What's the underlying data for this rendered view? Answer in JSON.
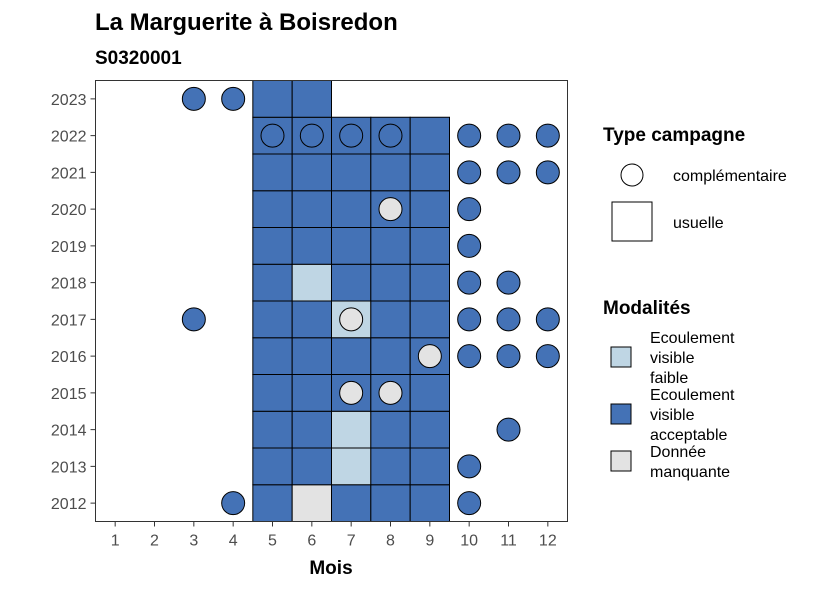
{
  "title": "La Marguerite à Boisredon",
  "subtitle": "S0320001",
  "chart_data": {
    "type": "heatmap",
    "title": "La Marguerite à Boisredon",
    "subtitle": "S0320001",
    "xlabel": "Mois",
    "ylabel": "",
    "x_ticks": [
      1,
      2,
      3,
      4,
      5,
      6,
      7,
      8,
      9,
      10,
      11,
      12
    ],
    "y_ticks": [
      2012,
      2013,
      2014,
      2015,
      2016,
      2017,
      2018,
      2019,
      2020,
      2021,
      2022,
      2023
    ],
    "xlim": [
      0.5,
      12.5
    ],
    "ylim": [
      2011.5,
      2023.5
    ],
    "colors": {
      "Ecoulement visible faible": "#bfd6e4",
      "Ecoulement visible acceptable": "#4472b6",
      "Donnée manquante": "#e3e3e3"
    },
    "usuelle": [
      {
        "year": 2012,
        "month": 5,
        "modalite": "acceptable"
      },
      {
        "year": 2012,
        "month": 6,
        "modalite": "manquante"
      },
      {
        "year": 2012,
        "month": 7,
        "modalite": "acceptable"
      },
      {
        "year": 2012,
        "month": 8,
        "modalite": "acceptable"
      },
      {
        "year": 2012,
        "month": 9,
        "modalite": "acceptable"
      },
      {
        "year": 2013,
        "month": 5,
        "modalite": "acceptable"
      },
      {
        "year": 2013,
        "month": 6,
        "modalite": "acceptable"
      },
      {
        "year": 2013,
        "month": 7,
        "modalite": "faible"
      },
      {
        "year": 2013,
        "month": 8,
        "modalite": "acceptable"
      },
      {
        "year": 2013,
        "month": 9,
        "modalite": "acceptable"
      },
      {
        "year": 2014,
        "month": 5,
        "modalite": "acceptable"
      },
      {
        "year": 2014,
        "month": 6,
        "modalite": "acceptable"
      },
      {
        "year": 2014,
        "month": 7,
        "modalite": "faible"
      },
      {
        "year": 2014,
        "month": 8,
        "modalite": "acceptable"
      },
      {
        "year": 2014,
        "month": 9,
        "modalite": "acceptable"
      },
      {
        "year": 2015,
        "month": 5,
        "modalite": "acceptable"
      },
      {
        "year": 2015,
        "month": 6,
        "modalite": "acceptable"
      },
      {
        "year": 2015,
        "month": 7,
        "modalite": "acceptable"
      },
      {
        "year": 2015,
        "month": 8,
        "modalite": "acceptable"
      },
      {
        "year": 2015,
        "month": 9,
        "modalite": "acceptable"
      },
      {
        "year": 2016,
        "month": 5,
        "modalite": "acceptable"
      },
      {
        "year": 2016,
        "month": 6,
        "modalite": "acceptable"
      },
      {
        "year": 2016,
        "month": 7,
        "modalite": "acceptable"
      },
      {
        "year": 2016,
        "month": 8,
        "modalite": "acceptable"
      },
      {
        "year": 2016,
        "month": 9,
        "modalite": "acceptable"
      },
      {
        "year": 2017,
        "month": 5,
        "modalite": "acceptable"
      },
      {
        "year": 2017,
        "month": 6,
        "modalite": "acceptable"
      },
      {
        "year": 2017,
        "month": 7,
        "modalite": "faible"
      },
      {
        "year": 2017,
        "month": 8,
        "modalite": "acceptable"
      },
      {
        "year": 2017,
        "month": 9,
        "modalite": "acceptable"
      },
      {
        "year": 2018,
        "month": 5,
        "modalite": "acceptable"
      },
      {
        "year": 2018,
        "month": 6,
        "modalite": "faible"
      },
      {
        "year": 2018,
        "month": 7,
        "modalite": "acceptable"
      },
      {
        "year": 2018,
        "month": 8,
        "modalite": "acceptable"
      },
      {
        "year": 2018,
        "month": 9,
        "modalite": "acceptable"
      },
      {
        "year": 2019,
        "month": 5,
        "modalite": "acceptable"
      },
      {
        "year": 2019,
        "month": 6,
        "modalite": "acceptable"
      },
      {
        "year": 2019,
        "month": 7,
        "modalite": "acceptable"
      },
      {
        "year": 2019,
        "month": 8,
        "modalite": "acceptable"
      },
      {
        "year": 2019,
        "month": 9,
        "modalite": "acceptable"
      },
      {
        "year": 2020,
        "month": 5,
        "modalite": "acceptable"
      },
      {
        "year": 2020,
        "month": 6,
        "modalite": "acceptable"
      },
      {
        "year": 2020,
        "month": 7,
        "modalite": "acceptable"
      },
      {
        "year": 2020,
        "month": 8,
        "modalite": "acceptable"
      },
      {
        "year": 2020,
        "month": 9,
        "modalite": "acceptable"
      },
      {
        "year": 2021,
        "month": 5,
        "modalite": "acceptable"
      },
      {
        "year": 2021,
        "month": 6,
        "modalite": "acceptable"
      },
      {
        "year": 2021,
        "month": 7,
        "modalite": "acceptable"
      },
      {
        "year": 2021,
        "month": 8,
        "modalite": "acceptable"
      },
      {
        "year": 2021,
        "month": 9,
        "modalite": "acceptable"
      },
      {
        "year": 2022,
        "month": 5,
        "modalite": "acceptable"
      },
      {
        "year": 2022,
        "month": 6,
        "modalite": "acceptable"
      },
      {
        "year": 2022,
        "month": 7,
        "modalite": "acceptable"
      },
      {
        "year": 2022,
        "month": 8,
        "modalite": "acceptable"
      },
      {
        "year": 2022,
        "month": 9,
        "modalite": "acceptable"
      },
      {
        "year": 2023,
        "month": 5,
        "modalite": "acceptable"
      },
      {
        "year": 2023,
        "month": 6,
        "modalite": "acceptable"
      }
    ],
    "complementaire": [
      {
        "year": 2012,
        "month": 4,
        "modalite": "acceptable"
      },
      {
        "year": 2012,
        "month": 10,
        "modalite": "acceptable"
      },
      {
        "year": 2013,
        "month": 10,
        "modalite": "acceptable"
      },
      {
        "year": 2014,
        "month": 11,
        "modalite": "acceptable"
      },
      {
        "year": 2015,
        "month": 7,
        "modalite": "manquante"
      },
      {
        "year": 2015,
        "month": 8,
        "modalite": "manquante"
      },
      {
        "year": 2016,
        "month": 9,
        "modalite": "manquante"
      },
      {
        "year": 2016,
        "month": 10,
        "modalite": "acceptable"
      },
      {
        "year": 2016,
        "month": 11,
        "modalite": "acceptable"
      },
      {
        "year": 2016,
        "month": 12,
        "modalite": "acceptable"
      },
      {
        "year": 2017,
        "month": 3,
        "modalite": "acceptable"
      },
      {
        "year": 2017,
        "month": 7,
        "modalite": "manquante"
      },
      {
        "year": 2017,
        "month": 10,
        "modalite": "acceptable"
      },
      {
        "year": 2017,
        "month": 11,
        "modalite": "acceptable"
      },
      {
        "year": 2017,
        "month": 12,
        "modalite": "acceptable"
      },
      {
        "year": 2018,
        "month": 10,
        "modalite": "acceptable"
      },
      {
        "year": 2018,
        "month": 11,
        "modalite": "acceptable"
      },
      {
        "year": 2019,
        "month": 10,
        "modalite": "acceptable"
      },
      {
        "year": 2020,
        "month": 8,
        "modalite": "manquante"
      },
      {
        "year": 2020,
        "month": 10,
        "modalite": "acceptable"
      },
      {
        "year": 2021,
        "month": 10,
        "modalite": "acceptable"
      },
      {
        "year": 2021,
        "month": 11,
        "modalite": "acceptable"
      },
      {
        "year": 2021,
        "month": 12,
        "modalite": "acceptable"
      },
      {
        "year": 2022,
        "month": 5,
        "modalite": "acceptable"
      },
      {
        "year": 2022,
        "month": 6,
        "modalite": "acceptable"
      },
      {
        "year": 2022,
        "month": 7,
        "modalite": "acceptable"
      },
      {
        "year": 2022,
        "month": 8,
        "modalite": "acceptable"
      },
      {
        "year": 2022,
        "month": 10,
        "modalite": "acceptable"
      },
      {
        "year": 2022,
        "month": 11,
        "modalite": "acceptable"
      },
      {
        "year": 2022,
        "month": 12,
        "modalite": "acceptable"
      },
      {
        "year": 2023,
        "month": 3,
        "modalite": "acceptable"
      },
      {
        "year": 2023,
        "month": 4,
        "modalite": "acceptable"
      }
    ]
  },
  "legend": {
    "type_title": "Type campagne",
    "type_items": [
      {
        "shape": "circle",
        "label": "complémentaire"
      },
      {
        "shape": "square",
        "label": "usuelle"
      }
    ],
    "modalites_title": "Modalités",
    "modalites_items": [
      {
        "key": "faible",
        "lines": [
          "Ecoulement",
          "visible",
          "faible"
        ],
        "color": "#bfd6e4"
      },
      {
        "key": "acceptable",
        "lines": [
          "Ecoulement",
          "visible",
          "acceptable"
        ],
        "color": "#4472b6"
      },
      {
        "key": "manquante",
        "lines": [
          "Donnée",
          "manquante"
        ],
        "color": "#e3e3e3"
      }
    ]
  }
}
